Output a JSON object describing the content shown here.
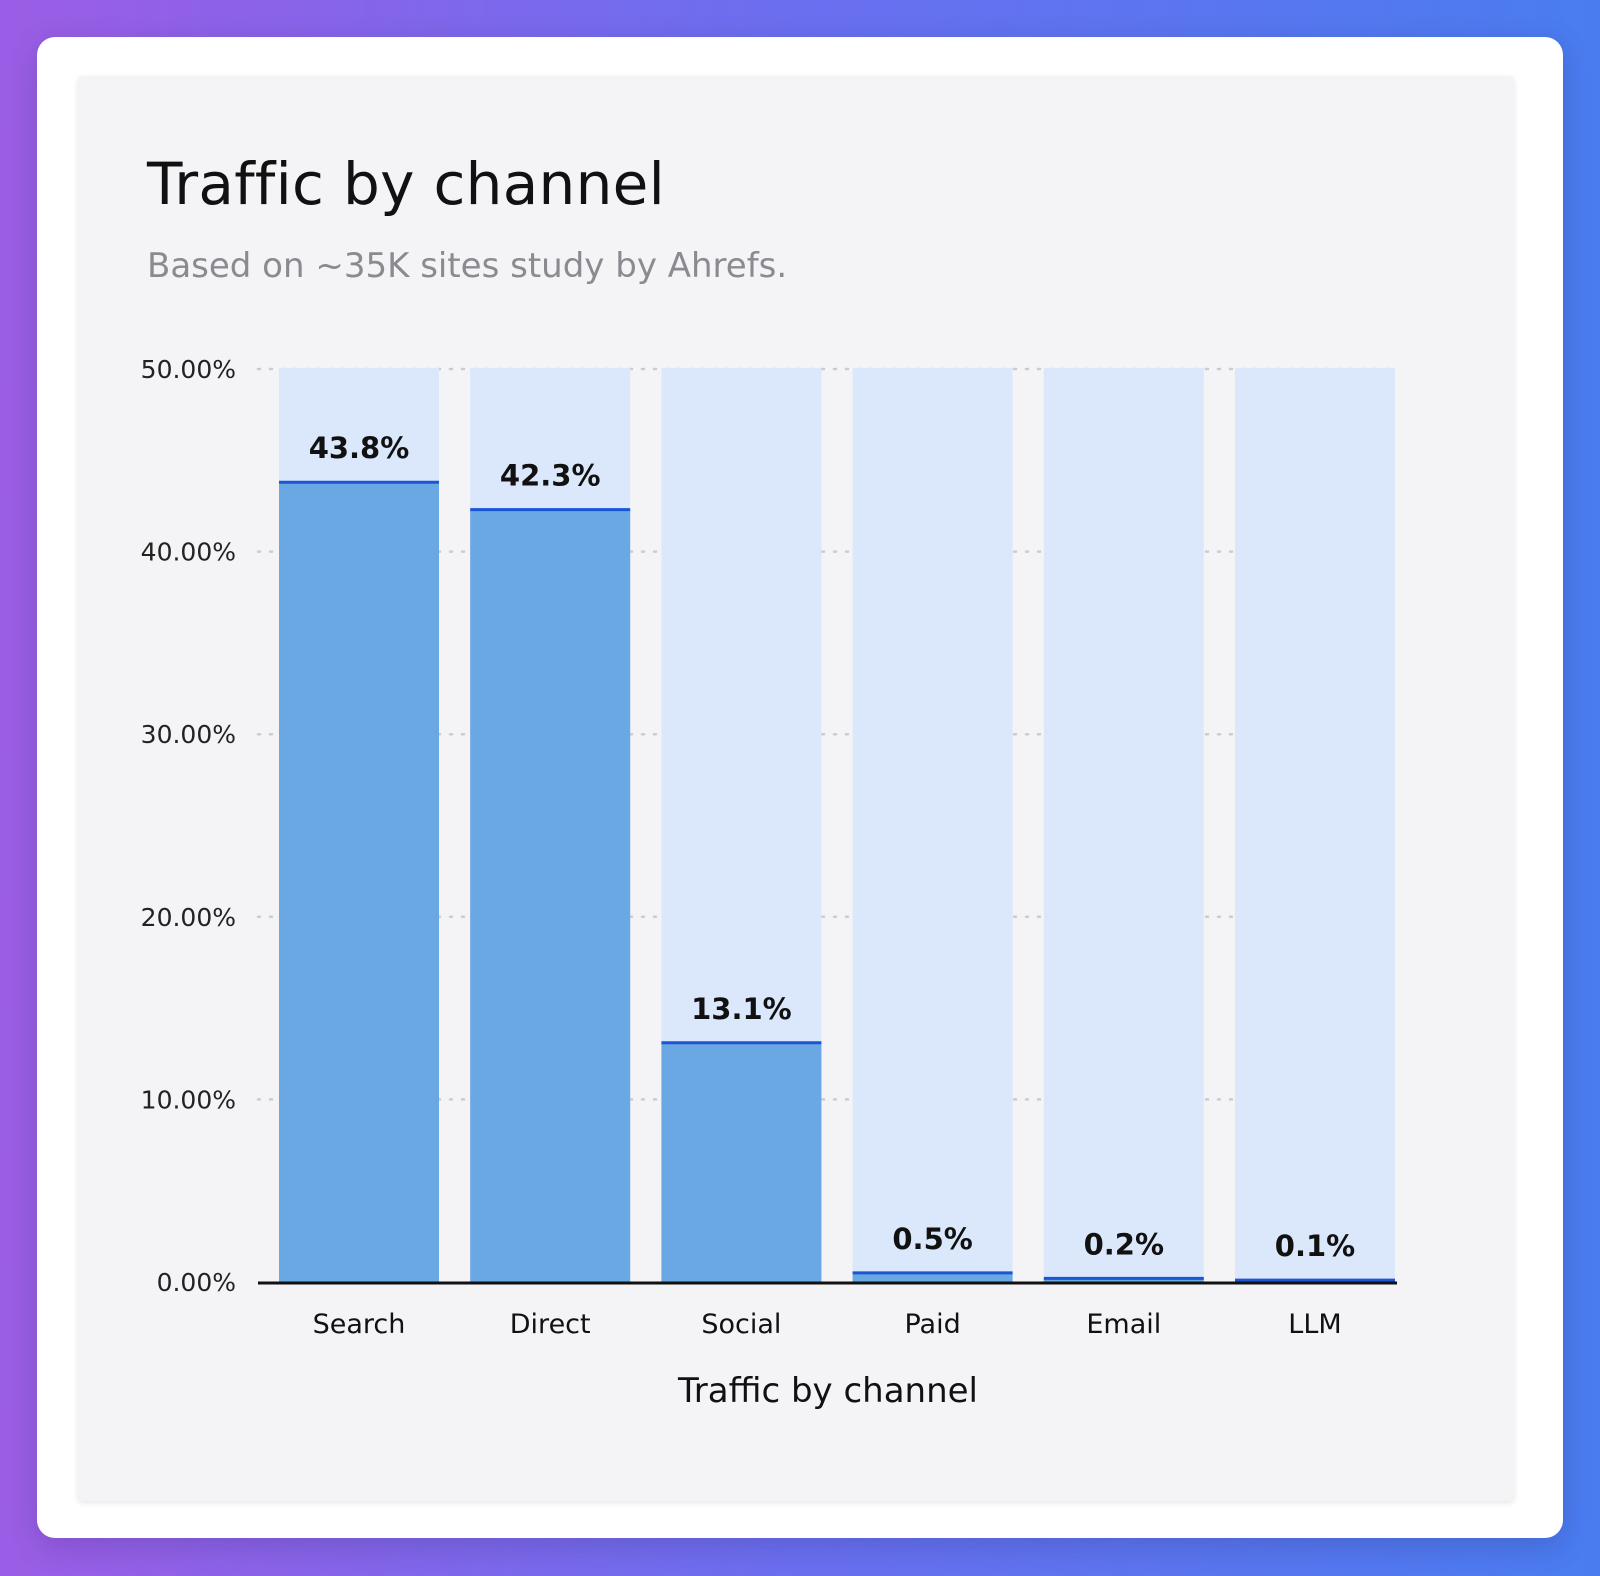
{
  "chart_data": {
    "type": "bar",
    "title": "Traffic by channel",
    "subtitle": "Based on ~35K sites study by Ahrefs.",
    "xlabel": "Traffic by channel",
    "ylabel": "",
    "categories": [
      "Search",
      "Direct",
      "Social",
      "Paid",
      "Email",
      "LLM"
    ],
    "values": [
      43.8,
      42.3,
      13.1,
      0.5,
      0.2,
      0.1
    ],
    "value_labels": [
      "43.8%",
      "42.3%",
      "13.1%",
      "0.5%",
      "0.2%",
      "0.1%"
    ],
    "ylim": [
      0,
      50
    ],
    "yticks": [
      0,
      10,
      20,
      30,
      40,
      50
    ],
    "ytick_labels": [
      "0.00%",
      "10.00%",
      "20.00%",
      "30.00%",
      "40.00%",
      "50.00%"
    ],
    "grid": true,
    "legend": "none",
    "colors": {
      "bar_fill": "#6aa8e4",
      "bar_top_line": "#1a55d6",
      "bar_background": "#dbe8fb",
      "grid": "#c9ccd6",
      "axis": "#111111"
    }
  }
}
